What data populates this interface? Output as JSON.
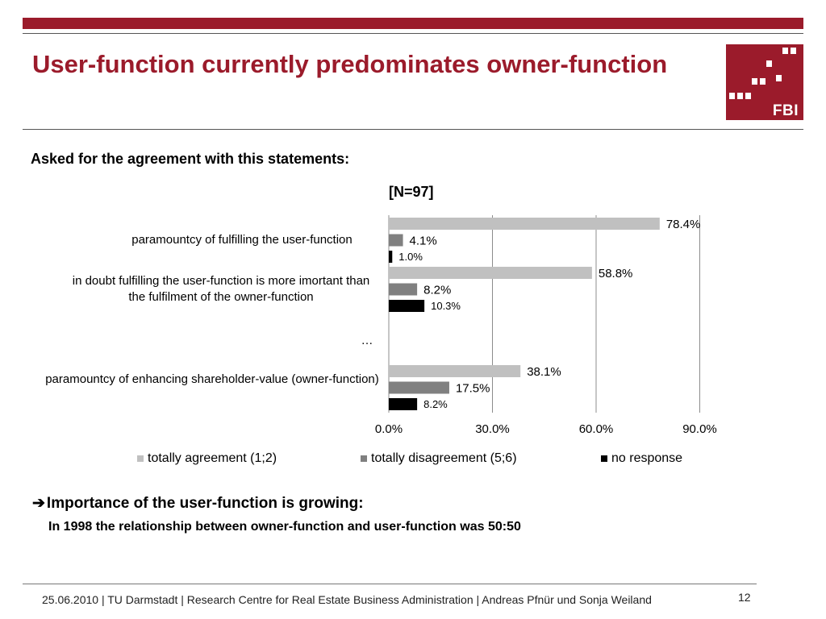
{
  "header": {
    "title": "User-function currently predominates owner-function",
    "logo_text": "FBI"
  },
  "subtitle": "Asked for the agreement with this statements:",
  "n_label": "[N=97]",
  "chart_data": {
    "type": "bar",
    "orientation": "horizontal",
    "categories": [
      "paramountcy of fulfilling the user-function",
      "in doubt fulfilling the user-function is more imortant than the fulfilment of the owner-function",
      "…",
      "paramountcy of enhancing shareholder-value (owner-function)"
    ],
    "series": [
      {
        "name": "totally agreement (1;2)",
        "color": "#c0c0c0",
        "values": [
          78.4,
          58.8,
          null,
          38.1
        ],
        "labels": [
          "78.4%",
          "58.8%",
          "",
          "38.1%"
        ]
      },
      {
        "name": "totally disagreement (5;6)",
        "color": "#808080",
        "values": [
          4.1,
          8.2,
          null,
          17.5
        ],
        "labels": [
          "4.1%",
          "8.2%",
          "",
          "17.5%"
        ]
      },
      {
        "name": "no response",
        "color": "#000000",
        "values": [
          1.0,
          10.3,
          null,
          8.2
        ],
        "labels": [
          "1.0%",
          "10.3%",
          "",
          "8.2%"
        ]
      }
    ],
    "xlim": [
      0,
      90
    ],
    "xticks": [
      0,
      30,
      60,
      90
    ],
    "xtick_labels": [
      "0.0%",
      "30.0%",
      "60.0%",
      "90.0%"
    ],
    "grid": true,
    "legend_position": "bottom"
  },
  "takeaway": {
    "arrow": "➔",
    "text": "Importance of the user-function is growing:",
    "note": "In 1998 the relationship between owner-function and user-function was 50:50"
  },
  "footer": {
    "text": "25.06.2010  | TU Darmstadt | Research Centre for Real Estate Business Administration |  Andreas Pfnür und Sonja Weiland",
    "page": "12"
  }
}
